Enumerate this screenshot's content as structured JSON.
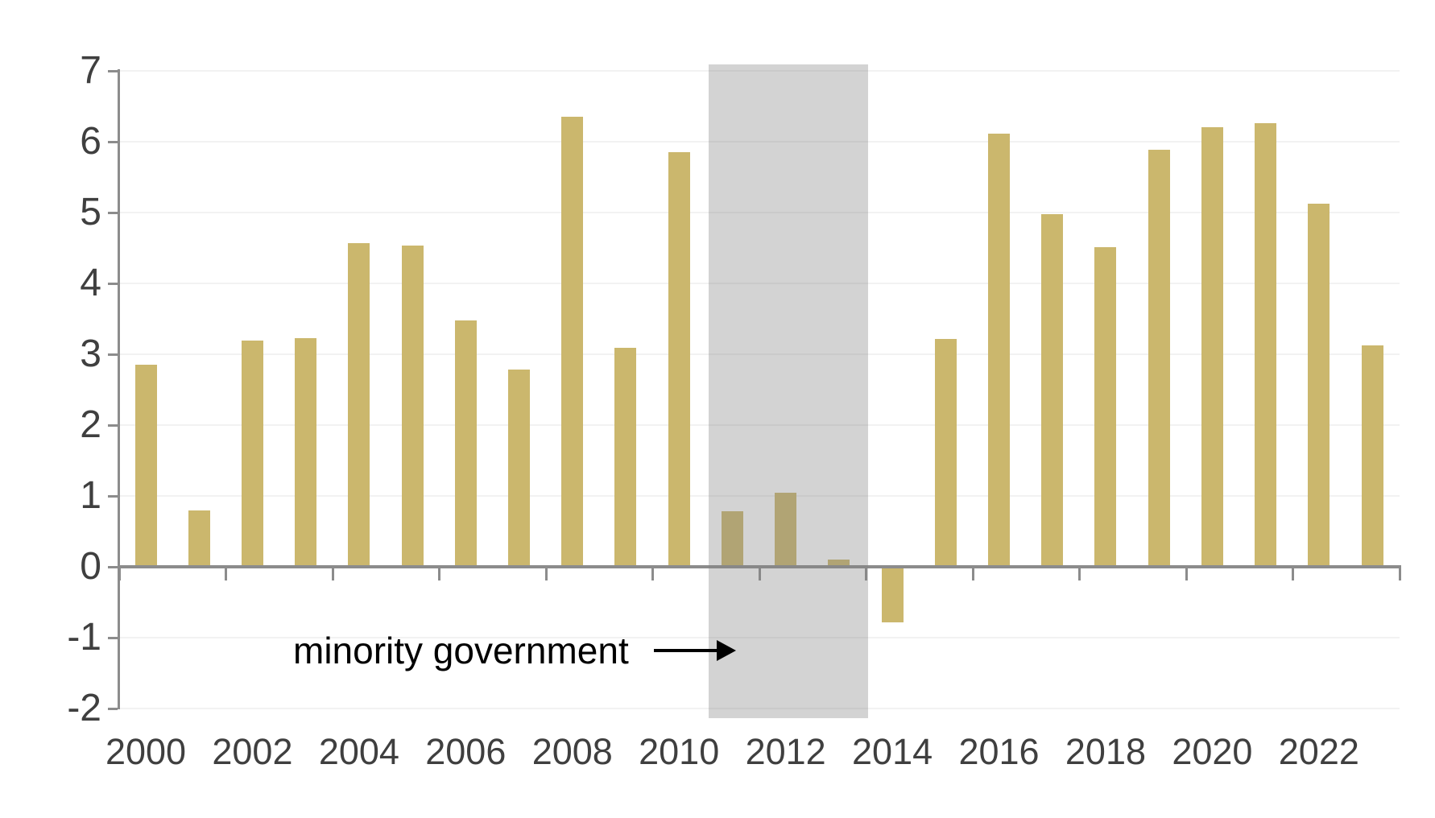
{
  "chart_data": {
    "type": "bar",
    "title": "",
    "categories": [
      2000,
      2001,
      2002,
      2003,
      2004,
      2005,
      2006,
      2007,
      2008,
      2009,
      2010,
      2011,
      2012,
      2013,
      2014,
      2015,
      2016,
      2017,
      2018,
      2019,
      2020,
      2021,
      2022,
      2023
    ],
    "values": [
      2.85,
      0.8,
      3.19,
      3.23,
      4.57,
      4.53,
      3.48,
      2.78,
      6.35,
      3.09,
      5.85,
      0.78,
      1.05,
      0.1,
      -0.8,
      3.22,
      6.11,
      4.98,
      4.51,
      5.89,
      6.2,
      6.26,
      5.13,
      3.13
    ],
    "ylim": [
      -2,
      7
    ],
    "y_tick_labels": [
      "7",
      "6",
      "5",
      "4",
      "3",
      "2",
      "1",
      "0",
      "-1",
      "-2"
    ],
    "y_tick_values": [
      7,
      6,
      5,
      4,
      3,
      2,
      1,
      0,
      -1,
      -2
    ],
    "x_tick_labels": [
      "2000",
      "2002",
      "2004",
      "2006",
      "2008",
      "2010",
      "2012",
      "2014",
      "2016",
      "2018",
      "2020",
      "2022"
    ],
    "grid": true,
    "legend": "none",
    "bar_color": "#CBB76D",
    "axis_color": "#8C8C8C",
    "tick_label_color": "#3F3F3F",
    "gridline_color": "#F2F2F2",
    "shaded_region": {
      "covers_years": [
        2011,
        2012,
        2013
      ],
      "color_on_white": "#D2D2D2",
      "overlay_rgba": "rgba(128,128,128,0.35)"
    },
    "annotation": {
      "text": "minority government",
      "arrow_direction": "right",
      "points_to": "shaded minority-government region (2011–2013)"
    }
  }
}
